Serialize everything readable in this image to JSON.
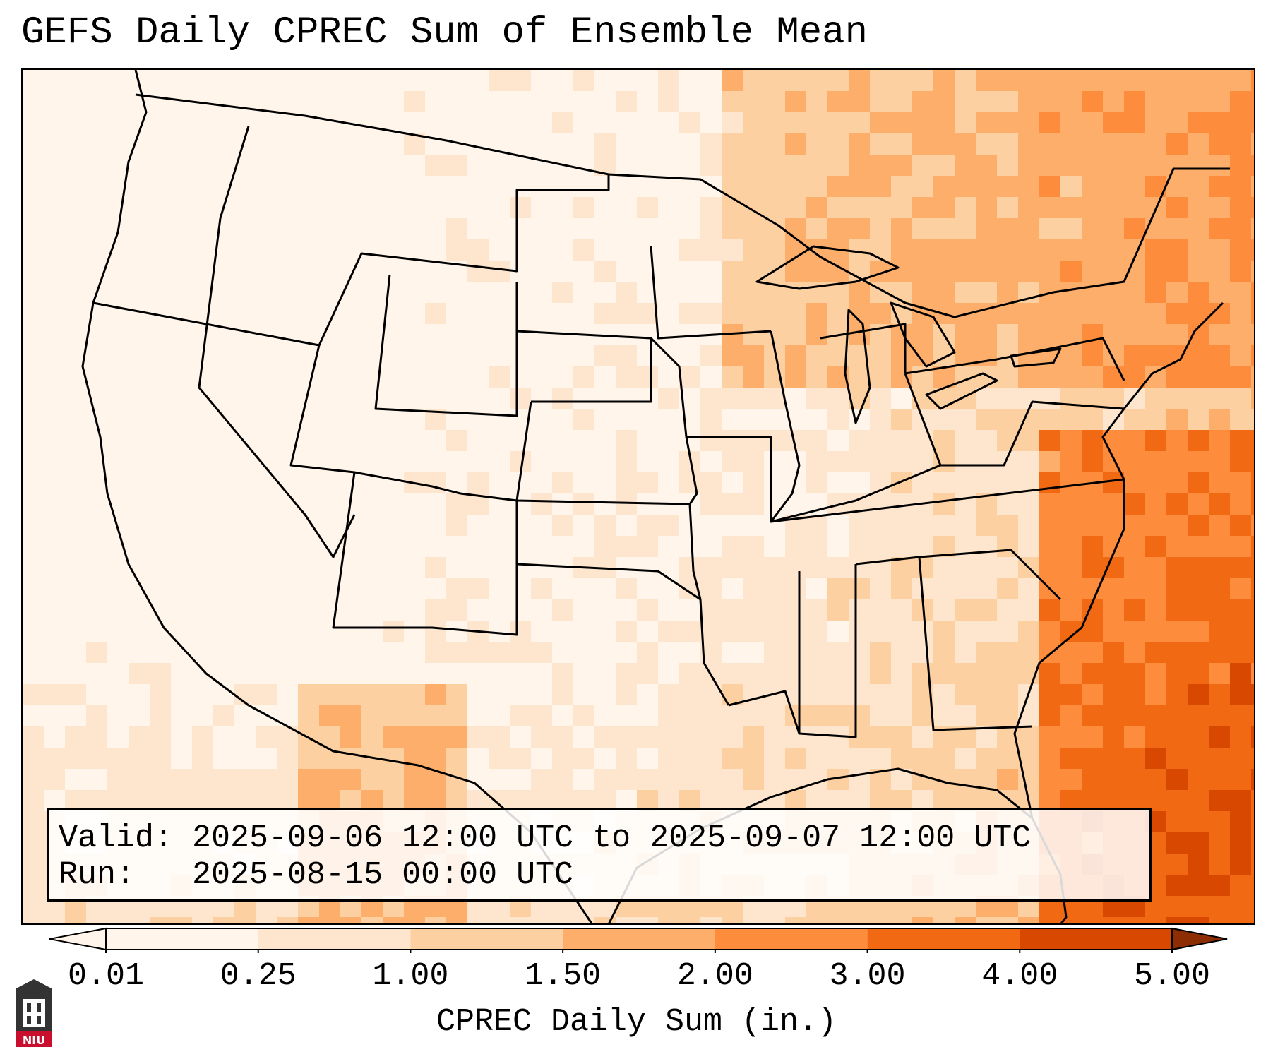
{
  "title": "GEFS Daily CPREC Sum of Ensemble Mean",
  "info": {
    "valid_line": "Valid: 2025-09-06 12:00 UTC to 2025-09-07 12:00 UTC",
    "run_line": "Run:   2025-08-15 00:00 UTC"
  },
  "colorbar": {
    "label": "CPREC Daily Sum (in.)",
    "ticks": [
      "0.01",
      "0.25",
      "1.00",
      "1.50",
      "2.00",
      "3.00",
      "4.00",
      "5.00"
    ],
    "colors": [
      "#fff5eb",
      "#fee6ce",
      "#fdd0a2",
      "#fdae6b",
      "#fd8d3c",
      "#f16913",
      "#d94801",
      "#8c2d04"
    ],
    "extend": "both"
  },
  "map": {
    "projection": "lambert-conformal",
    "region": "CONUS",
    "boundary_color": "#000000"
  },
  "logo": {
    "text": "NIU",
    "primary_color": "#c8102e"
  }
}
